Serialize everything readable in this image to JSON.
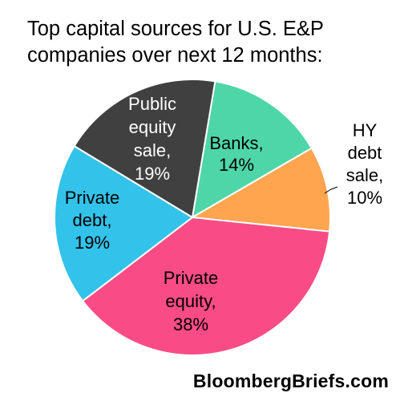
{
  "title_lines": [
    "Top capital sources for U.S. E&P",
    "companies over next 12 months:"
  ],
  "source": "BloombergBriefs.com",
  "chart_data": {
    "type": "pie",
    "title": "Top capital sources for U.S. E&P companies over next 12 months:",
    "slices": [
      {
        "label": "Banks",
        "value": 14,
        "color": "#4fd6a8",
        "text": [
          "Banks,",
          "14%"
        ]
      },
      {
        "label": "HY debt sale",
        "value": 10,
        "color": "#ffa44f",
        "text": [
          "HY",
          "debt",
          "sale,",
          "10%"
        ]
      },
      {
        "label": "Private equity",
        "value": 38,
        "color": "#f94c86",
        "text": [
          "Private",
          "equity,",
          "38%"
        ]
      },
      {
        "label": "Private debt",
        "value": 19,
        "color": "#33c2ea",
        "text": [
          "Private",
          "debt,",
          "19%"
        ]
      },
      {
        "label": "Public equity sale",
        "value": 19,
        "color": "#404040",
        "text": [
          "Public",
          "equity",
          "sale,",
          "19%"
        ]
      }
    ]
  }
}
